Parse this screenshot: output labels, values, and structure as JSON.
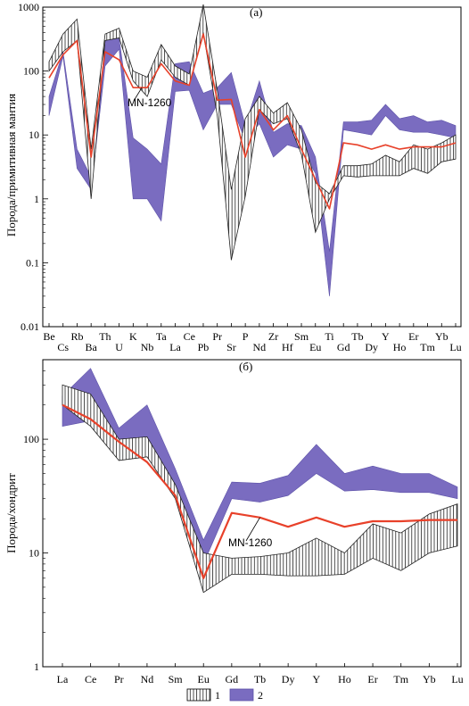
{
  "colors": {
    "sample": "#e8412a",
    "field2": "#7a6cc0",
    "field2_edge": "#5d52a8",
    "hatch": "#222222"
  },
  "chart_data": [
    {
      "panel_label": "(а)",
      "type": "line",
      "ylabel": "Порода/примитивная мантия",
      "y_scale": "log",
      "ylim": [
        0.01,
        1000
      ],
      "yticks": [
        "0.01",
        "0.1",
        "1",
        "10",
        "100",
        "1000"
      ],
      "categories": [
        "Be",
        "Cs",
        "Rb",
        "Ba",
        "Th",
        "U",
        "K",
        "Nb",
        "Ta",
        "La",
        "Ce",
        "Pb",
        "Pr",
        "Sr",
        "P",
        "Nd",
        "Zr",
        "Hf",
        "Sm",
        "Eu",
        "Ti",
        "Gd",
        "Tb",
        "Dy",
        "Y",
        "Ho",
        "Er",
        "Tm",
        "Yb",
        "Lu"
      ],
      "series": [
        {
          "name": "MN-1260",
          "values": [
            78,
            180,
            300,
            4.5,
            200,
            150,
            55,
            55,
            130,
            70,
            60,
            380,
            35,
            36,
            4.5,
            25,
            12,
            20,
            6,
            2,
            0.7,
            7.5,
            7,
            6,
            7,
            6,
            6.5,
            6.5,
            6.5,
            7.5
          ]
        },
        {
          "name": "1",
          "lower": [
            100,
            200,
            300,
            1.0,
            300,
            330,
            70,
            40,
            150,
            80,
            60,
            400,
            20,
            0.11,
            1.1,
            25,
            15,
            18,
            5,
            0.3,
            1.0,
            2.3,
            2.2,
            2.3,
            2.3,
            2.3,
            3,
            2.5,
            3.8,
            4.2
          ],
          "upper": [
            140,
            380,
            650,
            6.0,
            380,
            470,
            100,
            80,
            260,
            120,
            90,
            1100,
            50,
            1.4,
            18,
            40,
            22,
            32,
            12,
            1.8,
            1.2,
            3.3,
            3.3,
            3.5,
            4.8,
            3.8,
            7,
            6,
            7.5,
            10
          ]
        },
        {
          "name": "2",
          "lower": [
            20,
            170,
            3,
            1.4,
            120,
            220,
            1.0,
            1.0,
            0.45,
            48,
            50,
            12,
            30,
            30,
            8,
            15,
            4.5,
            7,
            6,
            2.5,
            0.03,
            12,
            11,
            10,
            20,
            12,
            11,
            11,
            10,
            9
          ],
          "upper": [
            40,
            200,
            6,
            2.2,
            320,
            320,
            9,
            6,
            3.5,
            130,
            140,
            45,
            55,
            95,
            14,
            70,
            11,
            15,
            14,
            4.5,
            0.15,
            16,
            16,
            17,
            30,
            18,
            20,
            16,
            17,
            14
          ]
        }
      ],
      "annotations": [
        {
          "text": "MN-1260",
          "category": "Nb"
        }
      ]
    },
    {
      "panel_label": "(б)",
      "type": "line",
      "ylabel": "Порода/хондрит",
      "y_scale": "log",
      "ylim": [
        1,
        500
      ],
      "yticks": [
        "1",
        "10",
        "100"
      ],
      "categories": [
        "La",
        "Ce",
        "Pr",
        "Nd",
        "Sm",
        "Eu",
        "Gd",
        "Tb",
        "Dy",
        "Y",
        "Ho",
        "Er",
        "Tm",
        "Yb",
        "Lu"
      ],
      "series": [
        {
          "name": "MN-1260",
          "values": [
            200,
            150,
            95,
            63,
            32,
            6,
            22.5,
            20.5,
            17,
            20.5,
            17,
            19,
            19,
            19.5,
            19.5
          ]
        },
        {
          "name": "1",
          "lower": [
            200,
            130,
            65,
            70,
            30,
            4.5,
            6.5,
            6.5,
            6.3,
            6.3,
            6.5,
            9,
            7,
            10,
            11.5
          ],
          "upper": [
            300,
            250,
            100,
            105,
            40,
            10,
            9,
            9.3,
            10,
            13.5,
            10,
            18,
            15,
            22,
            27
          ]
        },
        {
          "name": "2",
          "lower": [
            130,
            145,
            70,
            85,
            33,
            8,
            30,
            28,
            32,
            50,
            35,
            36,
            34,
            34,
            30
          ],
          "upper": [
            240,
            420,
            125,
            200,
            55,
            13,
            42,
            41,
            48,
            90,
            50,
            58,
            50,
            50,
            38
          ]
        }
      ],
      "annotations": [
        {
          "text": "MN-1260",
          "category": "Tb"
        }
      ]
    }
  ],
  "legend": [
    {
      "label": "1"
    },
    {
      "label": "2"
    }
  ]
}
